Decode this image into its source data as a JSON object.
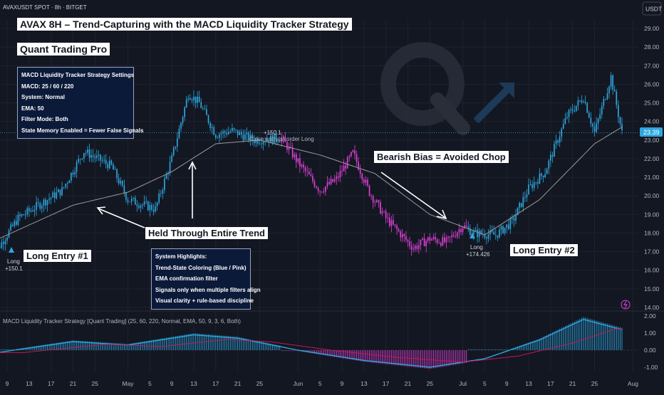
{
  "header": {
    "symbol": "AVAXUSDT SPOT · 8h · BITGET",
    "currency": "USDT"
  },
  "titles": {
    "main": "AVAX 8H – Trend-Capturing with the MACD Liquidity Tracker Strategy",
    "brand": "Quant Trading Pro"
  },
  "settings_box": {
    "lines": [
      "MACD Liquidity Tracker Strategy Settings",
      "MACD: 25 / 60 / 220",
      "System: Normal",
      "EMA: 50",
      "Filter Mode: Both",
      "State Memory Enabled = Fewer False Signals"
    ]
  },
  "highlights_box": {
    "lines": [
      "System Highlights:",
      "Trend-State Coloring (Blue / Pink)",
      "EMA confirmation filter",
      "Signals only when multiple filters align",
      "Visual clarity + rule-based discipline"
    ]
  },
  "annotations": {
    "long1": "Long Entry #1",
    "held": "Held Through Entire Trend",
    "bearish": "Bearish Bias = Avoided Chop",
    "long2": "Long Entry #2"
  },
  "trade_labels": {
    "long1_signal": "Long",
    "long1_price": "+150.1",
    "close_price": "+150.1",
    "close_text": "Close entry(s) order Long",
    "long2_signal": "Long",
    "long2_price": "+174.426"
  },
  "price_axis": {
    "ticks": [
      "29.00",
      "28.00",
      "27.00",
      "26.00",
      "25.00",
      "24.00",
      "23.00",
      "22.00",
      "21.00",
      "20.00",
      "19.00",
      "18.00",
      "17.00",
      "16.00",
      "15.00",
      "14.00"
    ],
    "current": "23.39"
  },
  "macd_panel": {
    "title": "MACD Liquidity Tracker Strategy [Quant Trading] (25, 60, 220, Normal, EMA, 50, 9, 3, 6, Both)",
    "ticks": [
      "2.00",
      "1.00",
      "0.00",
      "-1.00"
    ]
  },
  "time_axis": {
    "labels": [
      "9",
      "13",
      "17",
      "21",
      "25",
      "May",
      "5",
      "9",
      "13",
      "17",
      "21",
      "25",
      "Jun",
      "5",
      "9",
      "13",
      "17",
      "21",
      "25",
      "Jul",
      "5",
      "9",
      "13",
      "17",
      "21",
      "25",
      "Aug"
    ]
  },
  "colors": {
    "bull": "#2ea7e0",
    "bear": "#e040d8",
    "background": "#131722",
    "ema": "#9a9a9a",
    "grid": "#1e222d"
  },
  "chart_data": {
    "type": "candlestick",
    "symbol": "AVAXUSDT",
    "timeframe": "8h",
    "ylim": [
      14,
      29.5
    ],
    "macd_ylim": [
      -1.5,
      2.4
    ],
    "key_points": [
      {
        "date": "Apr 06",
        "price": 16.6
      },
      {
        "date": "Apr 11",
        "price": 18.8
      },
      {
        "date": "Apr 19",
        "price": 20.3
      },
      {
        "date": "Apr 23",
        "price": 22.4
      },
      {
        "date": "Apr 28",
        "price": 21.6
      },
      {
        "date": "May 01",
        "price": 19.8
      },
      {
        "date": "May 06",
        "price": 19.3
      },
      {
        "date": "May 09",
        "price": 22.0
      },
      {
        "date": "May 12",
        "price": 25.5
      },
      {
        "date": "May 14",
        "price": 25.0
      },
      {
        "date": "May 17",
        "price": 23.3
      },
      {
        "date": "May 20",
        "price": 23.5
      },
      {
        "date": "May 24",
        "price": 23.0
      },
      {
        "date": "May 29",
        "price": 23.1
      },
      {
        "date": "Jun 01",
        "price": 21.8
      },
      {
        "date": "Jun 05",
        "price": 20.3
      },
      {
        "date": "Jun 08",
        "price": 20.9
      },
      {
        "date": "Jun 11",
        "price": 22.3
      },
      {
        "date": "Jun 14",
        "price": 20.2
      },
      {
        "date": "Jun 17",
        "price": 18.8
      },
      {
        "date": "Jun 22",
        "price": 17.2
      },
      {
        "date": "Jun 25",
        "price": 17.7
      },
      {
        "date": "Jun 28",
        "price": 17.5
      },
      {
        "date": "Jul 01",
        "price": 18.4
      },
      {
        "date": "Jul 03",
        "price": 18.0
      },
      {
        "date": "Jul 07",
        "price": 17.9
      },
      {
        "date": "Jul 10",
        "price": 18.6
      },
      {
        "date": "Jul 13",
        "price": 20.4
      },
      {
        "date": "Jul 16",
        "price": 21.3
      },
      {
        "date": "Jul 20",
        "price": 24.3
      },
      {
        "date": "Jul 23",
        "price": 25.3
      },
      {
        "date": "Jul 25",
        "price": 23.4
      },
      {
        "date": "Jul 28",
        "price": 26.4
      },
      {
        "date": "Jul 30",
        "price": 23.39
      }
    ],
    "ema": [
      {
        "date": "Apr 06",
        "price": 17.5
      },
      {
        "date": "Apr 21",
        "price": 19.5
      },
      {
        "date": "May 01",
        "price": 20.2
      },
      {
        "date": "May 09",
        "price": 21.3
      },
      {
        "date": "May 17",
        "price": 22.8
      },
      {
        "date": "May 25",
        "price": 23.0
      },
      {
        "date": "Jun 05",
        "price": 22.2
      },
      {
        "date": "Jun 15",
        "price": 21.2
      },
      {
        "date": "Jun 25",
        "price": 19.0
      },
      {
        "date": "Jul 05",
        "price": 17.9
      },
      {
        "date": "Jul 15",
        "price": 19.8
      },
      {
        "date": "Jul 25",
        "price": 22.8
      },
      {
        "date": "Jul 30",
        "price": 23.7
      }
    ],
    "macd_line": [
      {
        "date": "Apr 06",
        "value": -0.2
      },
      {
        "date": "Apr 21",
        "value": 0.5
      },
      {
        "date": "May 01",
        "value": 0.3
      },
      {
        "date": "May 13",
        "value": 0.9
      },
      {
        "date": "May 21",
        "value": 0.7
      },
      {
        "date": "Jun 01",
        "value": 0.0
      },
      {
        "date": "Jun 13",
        "value": -0.6
      },
      {
        "date": "Jun 25",
        "value": -1.0
      },
      {
        "date": "Jul 05",
        "value": -0.5
      },
      {
        "date": "Jul 15",
        "value": 0.6
      },
      {
        "date": "Jul 23",
        "value": 1.8
      },
      {
        "date": "Jul 30",
        "value": 1.2
      }
    ],
    "signals": [
      {
        "type": "long",
        "date": "Apr 07",
        "price": 16.7,
        "pnl": "+150.1"
      },
      {
        "type": "close",
        "date": "May 29",
        "price": 23.4,
        "pnl": "+150.1"
      },
      {
        "type": "long",
        "date": "Jul 03",
        "price": 18.0,
        "pnl": "+174.426"
      }
    ]
  }
}
